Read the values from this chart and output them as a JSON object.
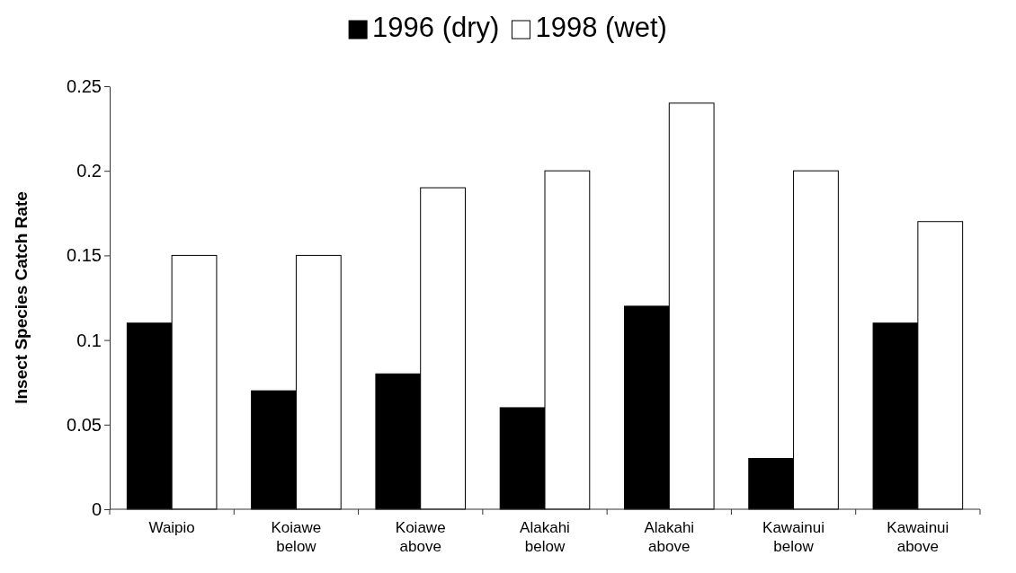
{
  "chart_data": {
    "type": "bar",
    "ylabel": "Insect Species Catch Rate",
    "categories": [
      "Waipio",
      "Koiawe below",
      "Koiawe above",
      "Alakahi below",
      "Alakahi above",
      "Kawainui below",
      "Kawainui above"
    ],
    "series": [
      {
        "name": "1996 (dry)",
        "color": "#000000",
        "values": [
          0.11,
          0.07,
          0.08,
          0.06,
          0.12,
          0.03,
          0.11
        ]
      },
      {
        "name": "1998 (wet)",
        "color": "#ffffff",
        "values": [
          0.15,
          0.15,
          0.19,
          0.2,
          0.24,
          0.2,
          0.17
        ]
      }
    ],
    "ylim": [
      0,
      0.25
    ],
    "yticks": [
      0,
      0.05,
      0.1,
      0.15,
      0.2,
      0.25
    ],
    "grid": false,
    "legend": "top"
  }
}
